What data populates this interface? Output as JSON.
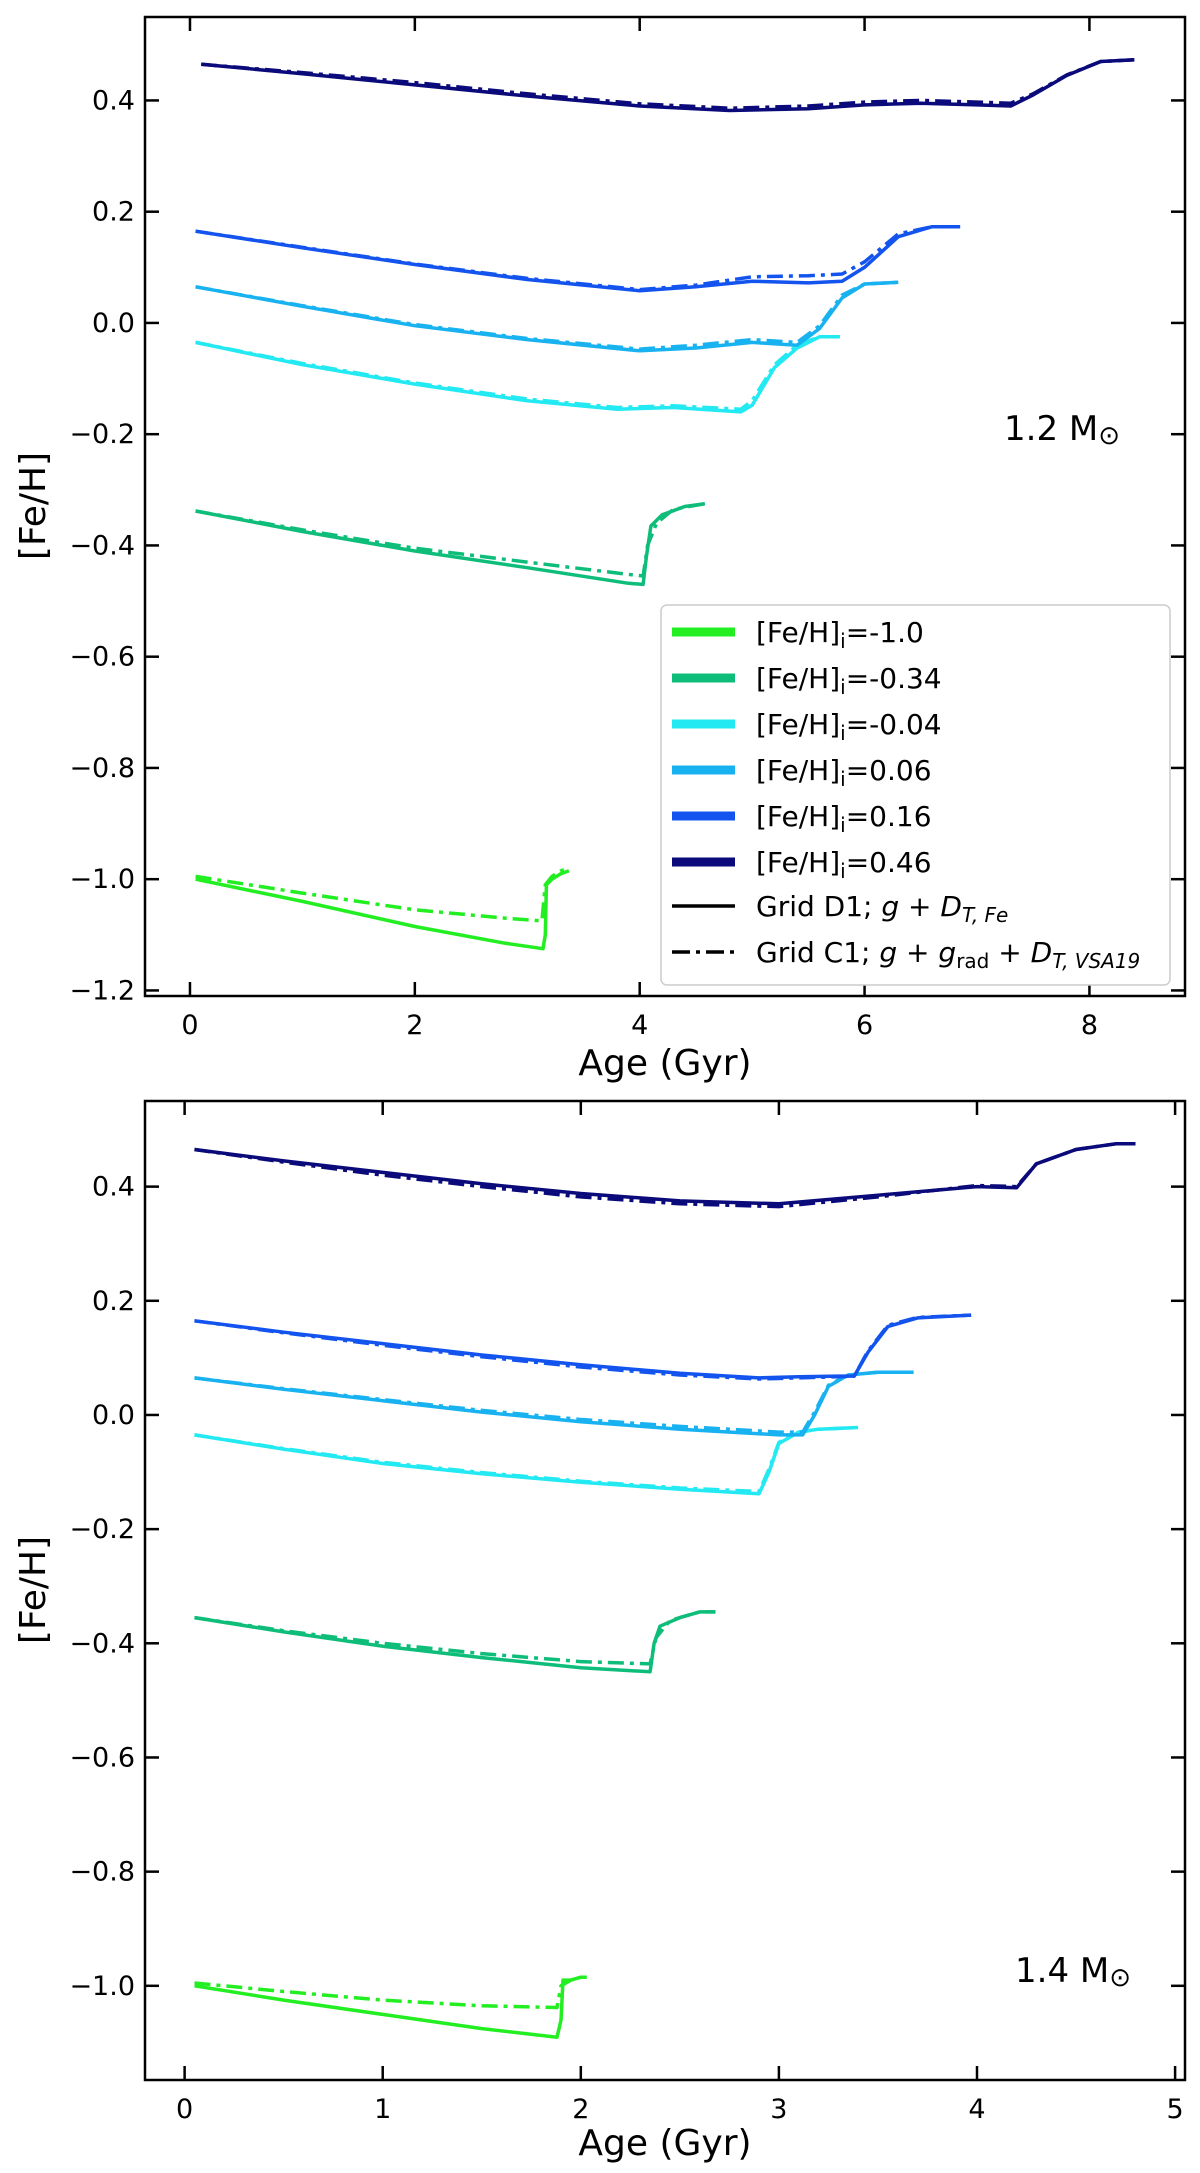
{
  "chart_data": [
    {
      "type": "line",
      "mass_label": "1.2 M",
      "xlabel": "Age (Gyr)",
      "ylabel": "[Fe/H]",
      "xlim": [
        -0.4,
        8.85
      ],
      "ylim": [
        -1.21,
        0.55
      ],
      "xticks": [
        0,
        2,
        4,
        6,
        8
      ],
      "xtick_labels": [
        "0",
        "2",
        "4",
        "6",
        "8"
      ],
      "yticks": [
        0.4,
        0.2,
        0.0,
        -0.2,
        -0.4,
        -0.6,
        -0.8,
        -1.0,
        -1.2
      ],
      "ytick_labels": [
        "0.4",
        "0.2",
        "0.0",
        "−0.2",
        "−0.4",
        "−0.6",
        "−0.8",
        "−1.0",
        "−1.2"
      ],
      "legend_position": "lower-right",
      "series": [
        {
          "name": "[Fe/H]i=-1.0",
          "color": "#22ee22",
          "style": "solid",
          "x": [
            0.05,
            1.0,
            2.0,
            2.8,
            3.14,
            3.16,
            3.17,
            3.22,
            3.3,
            3.37
          ],
          "y": [
            -1.0,
            -1.04,
            -1.085,
            -1.115,
            -1.125,
            -1.1,
            -1.01,
            -1.0,
            -0.99,
            -0.985
          ]
        },
        {
          "name": "[Fe/H]i=-1.0",
          "color": "#22ee22",
          "style": "dashdot",
          "x": [
            0.05,
            1.0,
            2.0,
            2.8,
            3.13,
            3.16,
            3.22,
            3.3,
            3.37
          ],
          "y": [
            -0.995,
            -1.025,
            -1.055,
            -1.07,
            -1.075,
            -1.01,
            -0.995,
            -0.985,
            -0.98
          ]
        },
        {
          "name": "[Fe/H]i=-0.34",
          "color": "#0fbd7a",
          "style": "solid",
          "x": [
            0.05,
            1.0,
            2.0,
            3.0,
            3.9,
            4.03,
            4.06,
            4.1,
            4.2,
            4.4,
            4.58
          ],
          "y": [
            -0.338,
            -0.375,
            -0.41,
            -0.44,
            -0.468,
            -0.47,
            -0.42,
            -0.365,
            -0.345,
            -0.33,
            -0.325
          ]
        },
        {
          "name": "[Fe/H]i=-0.34",
          "color": "#0fbd7a",
          "style": "dashdot",
          "x": [
            0.05,
            1.0,
            2.0,
            3.0,
            3.9,
            4.03,
            4.07,
            4.15,
            4.3,
            4.58
          ],
          "y": [
            -0.338,
            -0.372,
            -0.405,
            -0.43,
            -0.452,
            -0.455,
            -0.4,
            -0.36,
            -0.335,
            -0.325
          ]
        },
        {
          "name": "[Fe/H]i=-0.04",
          "color": "#22e9f2",
          "style": "solid",
          "x": [
            0.05,
            1.0,
            2.0,
            3.0,
            3.8,
            4.3,
            4.9,
            5.0,
            5.2,
            5.4,
            5.6,
            5.78
          ],
          "y": [
            -0.035,
            -0.075,
            -0.11,
            -0.14,
            -0.155,
            -0.152,
            -0.16,
            -0.148,
            -0.08,
            -0.045,
            -0.025,
            -0.025
          ]
        },
        {
          "name": "[Fe/H]i=-0.04",
          "color": "#22e9f2",
          "style": "dashdot",
          "x": [
            0.05,
            1.0,
            2.0,
            3.0,
            3.8,
            4.3,
            4.9,
            5.0,
            5.2,
            5.4,
            5.6,
            5.78
          ],
          "y": [
            -0.035,
            -0.073,
            -0.108,
            -0.137,
            -0.152,
            -0.149,
            -0.155,
            -0.14,
            -0.075,
            -0.04,
            -0.025,
            -0.025
          ]
        },
        {
          "name": "[Fe/H]i=0.06",
          "color": "#19b2f0",
          "style": "solid",
          "x": [
            0.05,
            1.0,
            2.0,
            3.0,
            4.0,
            4.5,
            5.0,
            5.4,
            5.6,
            5.8,
            6.0,
            6.3
          ],
          "y": [
            0.065,
            0.03,
            -0.005,
            -0.03,
            -0.05,
            -0.045,
            -0.035,
            -0.04,
            -0.01,
            0.045,
            0.07,
            0.073
          ]
        },
        {
          "name": "[Fe/H]i=0.06",
          "color": "#19b2f0",
          "style": "dashdot",
          "x": [
            0.05,
            1.0,
            2.0,
            3.0,
            4.0,
            4.5,
            5.0,
            5.4,
            5.6,
            5.8,
            6.0,
            6.3
          ],
          "y": [
            0.065,
            0.031,
            -0.003,
            -0.028,
            -0.047,
            -0.04,
            -0.03,
            -0.035,
            -0.005,
            0.05,
            0.07,
            0.073
          ]
        },
        {
          "name": "[Fe/H]i=0.16",
          "color": "#1353ee",
          "style": "solid",
          "x": [
            0.05,
            1.0,
            2.0,
            3.0,
            4.0,
            4.5,
            5.0,
            5.5,
            5.8,
            6.0,
            6.3,
            6.6,
            6.85
          ],
          "y": [
            0.165,
            0.135,
            0.105,
            0.078,
            0.058,
            0.065,
            0.075,
            0.072,
            0.075,
            0.1,
            0.155,
            0.173,
            0.173
          ]
        },
        {
          "name": "[Fe/H]i=0.16",
          "color": "#1353ee",
          "style": "dashdot",
          "x": [
            0.05,
            1.0,
            2.0,
            3.0,
            4.0,
            4.5,
            5.0,
            5.5,
            5.8,
            6.0,
            6.3,
            6.6,
            6.85
          ],
          "y": [
            0.165,
            0.136,
            0.106,
            0.08,
            0.06,
            0.068,
            0.083,
            0.085,
            0.088,
            0.11,
            0.16,
            0.173,
            0.173
          ]
        },
        {
          "name": "[Fe/H]i=0.46",
          "color": "#0a0a7a",
          "style": "solid",
          "x": [
            0.1,
            1.0,
            2.0,
            3.0,
            4.0,
            4.8,
            5.5,
            6.0,
            6.5,
            7.0,
            7.3,
            7.5,
            7.8,
            8.1,
            8.4
          ],
          "y": [
            0.465,
            0.448,
            0.428,
            0.408,
            0.39,
            0.382,
            0.385,
            0.392,
            0.395,
            0.392,
            0.39,
            0.41,
            0.445,
            0.47,
            0.473
          ]
        },
        {
          "name": "[Fe/H]i=0.46",
          "color": "#0a0a7a",
          "style": "dashdot",
          "x": [
            0.1,
            1.0,
            2.0,
            3.0,
            4.0,
            4.8,
            5.5,
            6.0,
            6.5,
            7.0,
            7.3,
            7.5,
            7.8,
            8.1,
            8.4
          ],
          "y": [
            0.465,
            0.45,
            0.432,
            0.412,
            0.394,
            0.386,
            0.39,
            0.397,
            0.4,
            0.397,
            0.395,
            0.412,
            0.446,
            0.47,
            0.473
          ]
        }
      ]
    },
    {
      "type": "line",
      "mass_label": "1.4 M",
      "xlabel": "Age (Gyr)",
      "ylabel": "[Fe/H]",
      "xlim": [
        -0.2,
        5.05
      ],
      "ylim": [
        -1.165,
        0.55
      ],
      "xticks": [
        0,
        1,
        2,
        3,
        4,
        5
      ],
      "xtick_labels": [
        "0",
        "1",
        "2",
        "3",
        "4",
        "5"
      ],
      "yticks": [
        0.4,
        0.2,
        0.0,
        -0.2,
        -0.4,
        -0.6,
        -0.8,
        -1.0
      ],
      "ytick_labels": [
        "0.4",
        "0.2",
        "0.0",
        "−0.2",
        "−0.4",
        "−0.6",
        "−0.8",
        "−1.0"
      ],
      "series": [
        {
          "name": "[Fe/H]i=-1.0",
          "color": "#22ee22",
          "style": "solid",
          "x": [
            0.05,
            0.5,
            1.0,
            1.5,
            1.88,
            1.9,
            1.91,
            1.95,
            2.0,
            2.03
          ],
          "y": [
            -1.0,
            -1.025,
            -1.05,
            -1.075,
            -1.09,
            -1.06,
            -0.99,
            -0.99,
            -0.985,
            -0.985
          ]
        },
        {
          "name": "[Fe/H]i=-1.0",
          "color": "#22ee22",
          "style": "dashdot",
          "x": [
            0.05,
            0.5,
            1.0,
            1.5,
            1.88,
            1.9,
            1.95,
            2.0,
            2.03
          ],
          "y": [
            -0.995,
            -1.01,
            -1.025,
            -1.035,
            -1.038,
            -1.0,
            -0.99,
            -0.985,
            -0.985
          ]
        },
        {
          "name": "[Fe/H]i=-0.34",
          "color": "#0fbd7a",
          "style": "solid",
          "x": [
            0.05,
            0.5,
            1.0,
            1.5,
            2.0,
            2.35,
            2.37,
            2.4,
            2.5,
            2.6,
            2.68
          ],
          "y": [
            -0.355,
            -0.38,
            -0.405,
            -0.425,
            -0.443,
            -0.45,
            -0.4,
            -0.37,
            -0.355,
            -0.345,
            -0.345
          ]
        },
        {
          "name": "[Fe/H]i=-0.34",
          "color": "#0fbd7a",
          "style": "dashdot",
          "x": [
            0.05,
            0.5,
            1.0,
            1.5,
            2.0,
            2.35,
            2.38,
            2.45,
            2.6,
            2.68
          ],
          "y": [
            -0.355,
            -0.378,
            -0.4,
            -0.418,
            -0.432,
            -0.436,
            -0.39,
            -0.36,
            -0.345,
            -0.345
          ]
        },
        {
          "name": "[Fe/H]i=-0.04",
          "color": "#22e9f2",
          "style": "solid",
          "x": [
            0.05,
            0.5,
            1.0,
            1.5,
            2.0,
            2.5,
            2.9,
            2.95,
            3.0,
            3.1,
            3.2,
            3.4
          ],
          "y": [
            -0.035,
            -0.06,
            -0.085,
            -0.103,
            -0.118,
            -0.13,
            -0.138,
            -0.1,
            -0.05,
            -0.03,
            -0.025,
            -0.022
          ]
        },
        {
          "name": "[Fe/H]i=-0.04",
          "color": "#22e9f2",
          "style": "dashdot",
          "x": [
            0.05,
            0.5,
            1.0,
            1.5,
            2.0,
            2.5,
            2.9,
            2.95,
            3.0,
            3.1,
            3.2,
            3.4
          ],
          "y": [
            -0.035,
            -0.059,
            -0.083,
            -0.101,
            -0.116,
            -0.128,
            -0.134,
            -0.095,
            -0.048,
            -0.03,
            -0.025,
            -0.022
          ]
        },
        {
          "name": "[Fe/H]i=0.06",
          "color": "#19b2f0",
          "style": "solid",
          "x": [
            0.05,
            0.5,
            1.0,
            1.5,
            2.0,
            2.5,
            3.0,
            3.12,
            3.18,
            3.25,
            3.35,
            3.5,
            3.68
          ],
          "y": [
            0.065,
            0.045,
            0.025,
            0.005,
            -0.012,
            -0.025,
            -0.035,
            -0.035,
            0.0,
            0.05,
            0.07,
            0.075,
            0.075
          ]
        },
        {
          "name": "[Fe/H]i=0.06",
          "color": "#19b2f0",
          "style": "dashdot",
          "x": [
            0.05,
            0.5,
            1.0,
            1.5,
            2.0,
            2.5,
            3.0,
            3.12,
            3.18,
            3.25,
            3.35,
            3.5,
            3.68
          ],
          "y": [
            0.065,
            0.046,
            0.027,
            0.008,
            -0.008,
            -0.02,
            -0.03,
            -0.03,
            0.005,
            0.052,
            0.07,
            0.075,
            0.075
          ]
        },
        {
          "name": "[Fe/H]i=0.16",
          "color": "#1353ee",
          "style": "solid",
          "x": [
            0.05,
            0.5,
            1.0,
            1.5,
            2.0,
            2.5,
            2.9,
            3.1,
            3.3,
            3.38,
            3.45,
            3.55,
            3.7,
            3.97
          ],
          "y": [
            0.165,
            0.145,
            0.125,
            0.105,
            0.088,
            0.073,
            0.065,
            0.067,
            0.068,
            0.068,
            0.11,
            0.155,
            0.17,
            0.175
          ]
        },
        {
          "name": "[Fe/H]i=0.16",
          "color": "#1353ee",
          "style": "dashdot",
          "x": [
            0.05,
            0.5,
            1.0,
            1.5,
            2.0,
            2.5,
            2.9,
            3.1,
            3.3,
            3.38,
            3.45,
            3.55,
            3.7,
            3.97
          ],
          "y": [
            0.165,
            0.144,
            0.122,
            0.102,
            0.084,
            0.07,
            0.063,
            0.065,
            0.067,
            0.068,
            0.112,
            0.157,
            0.171,
            0.175
          ]
        },
        {
          "name": "[Fe/H]i=0.46",
          "color": "#0a0a7a",
          "style": "solid",
          "x": [
            0.05,
            0.5,
            1.0,
            1.5,
            2.0,
            2.5,
            3.0,
            3.5,
            4.0,
            4.2,
            4.3,
            4.5,
            4.7,
            4.8
          ],
          "y": [
            0.465,
            0.445,
            0.425,
            0.405,
            0.388,
            0.375,
            0.37,
            0.385,
            0.4,
            0.398,
            0.44,
            0.465,
            0.475,
            0.475
          ]
        },
        {
          "name": "[Fe/H]i=0.46",
          "color": "#0a0a7a",
          "style": "dashdot",
          "x": [
            0.05,
            0.5,
            1.0,
            1.5,
            2.0,
            2.5,
            3.0,
            3.5,
            4.0,
            4.2,
            4.3,
            4.5,
            4.7,
            4.8
          ],
          "y": [
            0.465,
            0.443,
            0.42,
            0.4,
            0.382,
            0.37,
            0.365,
            0.382,
            0.402,
            0.4,
            0.44,
            0.465,
            0.475,
            0.475
          ]
        }
      ]
    }
  ],
  "legend": {
    "entries": [
      {
        "label_main": "[Fe/H]",
        "label_sub": "i",
        "label_rest": "=-1.0",
        "color": "#22ee22",
        "style": "thick"
      },
      {
        "label_main": "[Fe/H]",
        "label_sub": "i",
        "label_rest": "=-0.34",
        "color": "#0fbd7a",
        "style": "thick"
      },
      {
        "label_main": "[Fe/H]",
        "label_sub": "i",
        "label_rest": "=-0.04",
        "color": "#22e9f2",
        "style": "thick"
      },
      {
        "label_main": "[Fe/H]",
        "label_sub": "i",
        "label_rest": "=0.06",
        "color": "#19b2f0",
        "style": "thick"
      },
      {
        "label_main": "[Fe/H]",
        "label_sub": "i",
        "label_rest": "=0.16",
        "color": "#1353ee",
        "style": "thick"
      },
      {
        "label_main": "[Fe/H]",
        "label_sub": "i",
        "label_rest": "=0.46",
        "color": "#0a0a7a",
        "style": "thick"
      }
    ],
    "grid_d1": {
      "prefix": "Grid D1; ",
      "color": "#000000",
      "style": "solid"
    },
    "grid_c1": {
      "prefix": "Grid C1; ",
      "color": "#000000",
      "style": "dashdot"
    }
  }
}
